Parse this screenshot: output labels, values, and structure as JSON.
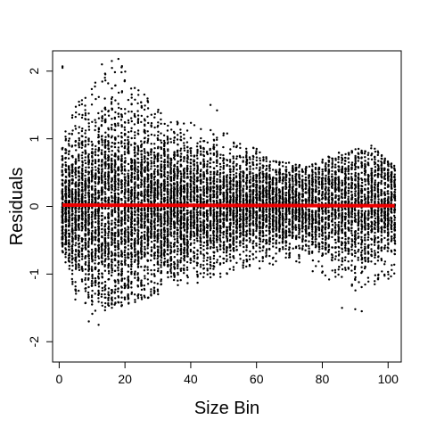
{
  "chart_data": {
    "type": "scatter",
    "xlabel": "Size Bin",
    "ylabel": "Residuals",
    "xlim": [
      -2,
      104
    ],
    "ylim": [
      -2.3,
      2.3
    ],
    "xticks": [
      0,
      20,
      40,
      60,
      80,
      100
    ],
    "yticks": [
      -2,
      -1,
      0,
      1,
      2
    ],
    "grid": false,
    "point_color": "#000000",
    "description_points": "dense black dots at integer bins 1-102, residuals spread roughly symmetric around 0, spread widest near bins 10-30 (about -1.7 to 2.2), narrowing to about -1 to 1 by bin 100",
    "envelope": [
      {
        "x": 1,
        "lo": -0.7,
        "hi": 1.1
      },
      {
        "x": 5,
        "lo": -1.4,
        "hi": 1.5
      },
      {
        "x": 10,
        "lo": -1.6,
        "hi": 1.8
      },
      {
        "x": 17,
        "lo": -1.5,
        "hi": 2.2
      },
      {
        "x": 25,
        "lo": -1.4,
        "hi": 1.7
      },
      {
        "x": 35,
        "lo": -1.2,
        "hi": 1.3
      },
      {
        "x": 45,
        "lo": -1.1,
        "hi": 1.2
      },
      {
        "x": 55,
        "lo": -1.0,
        "hi": 1.0
      },
      {
        "x": 65,
        "lo": -0.9,
        "hi": 0.7
      },
      {
        "x": 75,
        "lo": -0.9,
        "hi": 0.6
      },
      {
        "x": 85,
        "lo": -1.2,
        "hi": 0.8
      },
      {
        "x": 95,
        "lo": -1.3,
        "hi": 0.9
      },
      {
        "x": 102,
        "lo": -1.0,
        "hi": 0.6
      }
    ],
    "outliers": [
      {
        "x": 1,
        "y": 2.07
      },
      {
        "x": 1,
        "y": 2.05
      },
      {
        "x": 16,
        "y": 2.15
      },
      {
        "x": 18,
        "y": 2.18
      },
      {
        "x": 13,
        "y": 2.1
      },
      {
        "x": 46,
        "y": 1.5
      },
      {
        "x": 48,
        "y": 1.42
      },
      {
        "x": 86,
        "y": -1.5
      },
      {
        "x": 90,
        "y": -1.52
      },
      {
        "x": 92,
        "y": -1.55
      },
      {
        "x": 9,
        "y": -1.7
      },
      {
        "x": 12,
        "y": -1.75
      }
    ],
    "series": [
      {
        "type": "line",
        "color": "#ee0000",
        "x": [
          1,
          102
        ],
        "y": [
          0.02,
          0.01
        ]
      }
    ]
  }
}
